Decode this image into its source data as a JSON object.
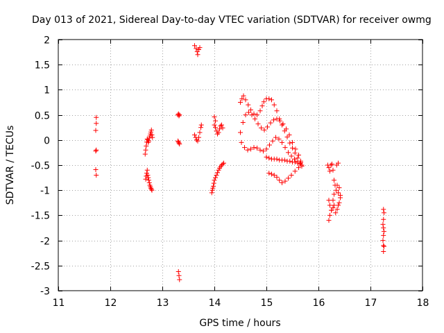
{
  "chart_data": {
    "type": "scatter",
    "title": "Day 013 of 2021, Sidereal Day-to-day VTEC variation (SDTVAR) for receiver owmg",
    "xlabel": "GPS time / hours",
    "ylabel": "SDTVAR / TECUs",
    "xlim": [
      11,
      18
    ],
    "ylim": [
      -3,
      2
    ],
    "xticks": [
      11,
      12,
      13,
      14,
      15,
      16,
      17,
      18
    ],
    "xtick_labels": [
      "11",
      "12",
      "13",
      "14",
      "15",
      "16",
      "17",
      "18"
    ],
    "yticks": [
      -3,
      -2.5,
      -2,
      -1.5,
      -1,
      -0.5,
      0,
      0.5,
      1,
      1.5,
      2
    ],
    "ytick_labels": [
      "-3",
      "-2.5",
      "-2",
      "-1.5",
      "-1",
      "-0.5",
      "0",
      "0.5",
      "1",
      "1.5",
      "2"
    ],
    "grid": true,
    "marker": "+",
    "color": "#ff0000",
    "series": [
      {
        "name": "c1",
        "x": [
          11.73,
          11.73,
          11.72,
          11.73,
          11.72,
          11.72,
          11.73
        ],
        "y": [
          0.45,
          0.33,
          0.19,
          -0.2,
          -0.22,
          -0.59,
          -0.7
        ]
      },
      {
        "name": "c2a",
        "x": [
          12.67,
          12.68,
          12.69,
          12.7,
          12.71,
          12.72,
          12.73,
          12.74,
          12.75,
          12.76,
          12.77,
          12.78,
          12.79,
          12.8,
          12.81
        ],
        "y": [
          -0.28,
          -0.2,
          -0.12,
          -0.04,
          0.02,
          0.0,
          -0.05,
          -0.02,
          0.04,
          0.08,
          0.12,
          0.16,
          0.2,
          0.1,
          0.05
        ]
      },
      {
        "name": "c2b",
        "x": [
          12.68,
          12.69,
          12.7,
          12.71,
          12.72,
          12.73,
          12.74,
          12.75,
          12.76,
          12.77,
          12.78,
          12.79,
          12.8
        ],
        "y": [
          -0.78,
          -0.72,
          -0.66,
          -0.6,
          -0.7,
          -0.75,
          -0.8,
          -0.85,
          -0.9,
          -0.93,
          -0.96,
          -0.98,
          -1.0
        ]
      },
      {
        "name": "c3",
        "x": [
          13.3,
          13.31,
          13.32,
          13.33,
          13.3,
          13.31,
          13.32,
          13.33,
          13.31,
          13.32,
          13.33
        ],
        "y": [
          0.5,
          0.52,
          0.48,
          0.5,
          -0.02,
          -0.04,
          -0.06,
          -0.08,
          -2.62,
          -2.7,
          -2.78
        ]
      },
      {
        "name": "c4a",
        "x": [
          13.62,
          13.65,
          13.67,
          13.68,
          13.7,
          13.72
        ],
        "y": [
          1.88,
          1.82,
          1.76,
          1.7,
          1.8,
          1.84
        ]
      },
      {
        "name": "c4b",
        "x": [
          13.62,
          13.64,
          13.66,
          13.68,
          13.7,
          13.72,
          13.74,
          13.75
        ],
        "y": [
          0.1,
          0.05,
          0.0,
          -0.02,
          0.05,
          0.15,
          0.25,
          0.3
        ]
      },
      {
        "name": "c5a",
        "x": [
          13.95,
          13.96,
          13.97,
          13.98,
          13.99,
          14.0,
          14.02,
          14.04,
          14.06,
          14.08,
          14.1,
          14.12,
          14.14,
          14.16,
          14.18
        ],
        "y": [
          -1.05,
          -1.0,
          -0.96,
          -0.92,
          -0.86,
          -0.8,
          -0.75,
          -0.7,
          -0.65,
          -0.6,
          -0.56,
          -0.53,
          -0.5,
          -0.48,
          -0.46
        ]
      },
      {
        "name": "c5b",
        "x": [
          14.0,
          14.02,
          14.04,
          14.06,
          14.08,
          14.1,
          14.12,
          14.14,
          14.16,
          14.0,
          14.02
        ],
        "y": [
          0.3,
          0.25,
          0.18,
          0.12,
          0.15,
          0.22,
          0.28,
          0.3,
          0.24,
          0.46,
          0.38
        ]
      },
      {
        "name": "c6a",
        "x": [
          14.5,
          14.53,
          14.56,
          14.6,
          14.65,
          14.7,
          14.76,
          14.82,
          14.88,
          14.92,
          14.95,
          15.0,
          15.05,
          15.1,
          15.15,
          15.2,
          15.25,
          15.3,
          15.35,
          15.4,
          15.45,
          15.5,
          15.55,
          15.6,
          15.65,
          15.68
        ],
        "y": [
          0.75,
          0.82,
          0.88,
          0.8,
          0.7,
          0.6,
          0.52,
          0.5,
          0.58,
          0.68,
          0.76,
          0.82,
          0.82,
          0.8,
          0.7,
          0.58,
          0.42,
          0.3,
          0.18,
          0.06,
          -0.06,
          -0.16,
          -0.26,
          -0.36,
          -0.46,
          -0.52
        ]
      },
      {
        "name": "c6b",
        "x": [
          14.5,
          14.55,
          14.6,
          14.66,
          14.72,
          14.78,
          14.84,
          14.9,
          14.96,
          15.02,
          15.08,
          15.14,
          15.2,
          15.26,
          15.32,
          15.38,
          15.44,
          15.5,
          15.56,
          15.62,
          15.66,
          15.68,
          15.62,
          15.55,
          15.48,
          15.42,
          15.36,
          15.3,
          15.25,
          15.2,
          15.15,
          15.1,
          15.05
        ],
        "y": [
          0.15,
          0.35,
          0.5,
          0.55,
          0.5,
          0.42,
          0.32,
          0.24,
          0.2,
          0.26,
          0.34,
          0.4,
          0.42,
          0.38,
          0.32,
          0.22,
          0.1,
          -0.05,
          -0.18,
          -0.3,
          -0.42,
          -0.5,
          -0.55,
          -0.62,
          -0.7,
          -0.76,
          -0.82,
          -0.85,
          -0.8,
          -0.74,
          -0.7,
          -0.68,
          -0.66
        ]
      },
      {
        "name": "c6c",
        "x": [
          14.52,
          14.58,
          14.64,
          14.7,
          14.76,
          14.82,
          14.88,
          14.94,
          15.0,
          15.06,
          15.12,
          15.18,
          15.24,
          15.3,
          15.36,
          15.42,
          15.48,
          15.54,
          15.6,
          15.66
        ],
        "y": [
          -0.05,
          -0.15,
          -0.2,
          -0.18,
          -0.15,
          -0.16,
          -0.2,
          -0.22,
          -0.18,
          -0.1,
          -0.02,
          0.05,
          0.02,
          -0.05,
          -0.15,
          -0.25,
          -0.32,
          -0.38,
          -0.42,
          -0.45
        ]
      },
      {
        "name": "c6d",
        "x": [
          15.0,
          15.05,
          15.1,
          15.15,
          15.2,
          15.25,
          15.3,
          15.35,
          15.4,
          15.45,
          15.5,
          15.55,
          15.6,
          15.65
        ],
        "y": [
          -0.34,
          -0.36,
          -0.38,
          -0.38,
          -0.38,
          -0.4,
          -0.4,
          -0.4,
          -0.42,
          -0.42,
          -0.44,
          -0.44,
          -0.46,
          -0.48
        ]
      },
      {
        "name": "c7",
        "x": [
          16.18,
          16.2,
          16.22,
          16.24,
          16.26,
          16.28,
          16.3,
          16.32,
          16.34,
          16.36,
          16.38,
          16.4,
          16.42,
          16.2,
          16.22,
          16.25,
          16.28,
          16.3,
          16.33,
          16.36,
          16.38,
          16.4,
          16.42,
          16.2,
          16.22,
          16.25,
          16.28,
          16.3,
          16.35,
          16.38
        ],
        "y": [
          -0.5,
          -0.55,
          -0.62,
          -0.5,
          -0.48,
          -0.6,
          -0.8,
          -0.9,
          -1.0,
          -0.9,
          -1.05,
          -0.95,
          -1.1,
          -1.2,
          -1.3,
          -1.4,
          -1.35,
          -1.3,
          -1.45,
          -1.38,
          -1.3,
          -1.25,
          -1.15,
          -1.6,
          -1.5,
          -1.4,
          -1.2,
          -1.08,
          -0.5,
          -0.46
        ]
      },
      {
        "name": "c8",
        "x": [
          17.25,
          17.26,
          17.25,
          17.24,
          17.25,
          17.26,
          17.25,
          17.24,
          17.25,
          17.26,
          17.25
        ],
        "y": [
          -1.38,
          -1.45,
          -1.58,
          -1.68,
          -1.75,
          -1.82,
          -1.9,
          -2.0,
          -2.1,
          -2.12,
          -2.22
        ]
      }
    ]
  }
}
